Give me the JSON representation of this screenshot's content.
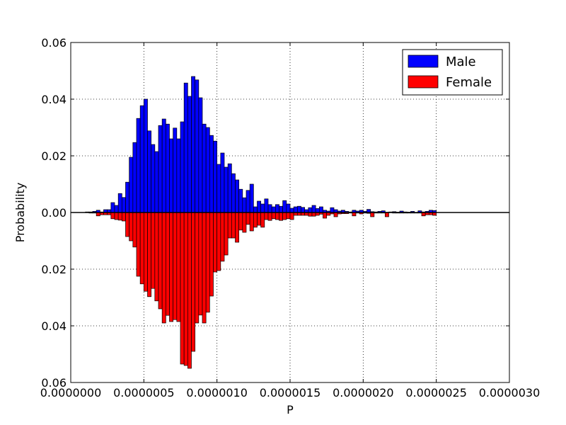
{
  "chart_data": {
    "type": "bar",
    "xlabel": "P",
    "ylabel": "Probability",
    "xlim": [
      0,
      3e-06
    ],
    "ylim": [
      -0.06,
      0.06
    ],
    "x_ticks": [
      "0.0000000",
      "0.0000005",
      "0.0000010",
      "0.0000015",
      "0.0000020",
      "0.0000025",
      "0.0000030"
    ],
    "y_ticks": [
      "0.06",
      "0.04",
      "0.02",
      "0.00",
      "0.02",
      "0.04",
      "0.06"
    ],
    "grid": true,
    "legend_position": "top-right",
    "bin_start": 1e-07,
    "bin_width": 2.5e-08,
    "series": [
      {
        "name": "Male",
        "color": "#0000ff",
        "values": [
          0.0002,
          0.0002,
          0.0004,
          0.0008,
          0.0002,
          0.001,
          0.001,
          0.0035,
          0.0025,
          0.0067,
          0.0053,
          0.0107,
          0.0195,
          0.0247,
          0.0332,
          0.0377,
          0.04,
          0.0288,
          0.024,
          0.0215,
          0.0307,
          0.033,
          0.0312,
          0.026,
          0.0298,
          0.026,
          0.032,
          0.0457,
          0.041,
          0.048,
          0.0468,
          0.0405,
          0.0312,
          0.03,
          0.0272,
          0.0252,
          0.017,
          0.021,
          0.016,
          0.0172,
          0.0137,
          0.0115,
          0.0082,
          0.0052,
          0.0078,
          0.01,
          0.002,
          0.004,
          0.003,
          0.0048,
          0.0028,
          0.002,
          0.0028,
          0.0022,
          0.0042,
          0.003,
          0.0015,
          0.002,
          0.0022,
          0.0018,
          0.001,
          0.0017,
          0.0025,
          0.0014,
          0.002,
          0.0008,
          0.0005,
          0.0017,
          0.001,
          0.0005,
          0.0008,
          0.0004,
          0.0002,
          0.0008,
          0.0005,
          0.0008,
          0.0004,
          0.0011,
          0.0003,
          0.0002,
          0.0004,
          0.0006,
          0.0001,
          0.0002,
          0.0003,
          0.0001,
          0.0005,
          0.0002,
          0.0001,
          0.0004,
          0.0,
          0.0006,
          0.0002,
          0.0004,
          0.0008,
          0.0007
        ]
      },
      {
        "name": "Female",
        "color": "#ff0000",
        "values": [
          0.0,
          0.0002,
          0.0002,
          0.0012,
          0.0008,
          0.0008,
          0.0008,
          0.0022,
          0.0025,
          0.0027,
          0.003,
          0.0085,
          0.01,
          0.0122,
          0.0225,
          0.0252,
          0.0278,
          0.0297,
          0.0268,
          0.0312,
          0.034,
          0.039,
          0.0363,
          0.0385,
          0.0378,
          0.0385,
          0.0535,
          0.054,
          0.055,
          0.049,
          0.039,
          0.0362,
          0.039,
          0.0352,
          0.0295,
          0.021,
          0.0205,
          0.0172,
          0.015,
          0.009,
          0.009,
          0.0105,
          0.0062,
          0.007,
          0.0042,
          0.0065,
          0.0052,
          0.0045,
          0.0052,
          0.0025,
          0.0028,
          0.0022,
          0.0025,
          0.0028,
          0.0025,
          0.0022,
          0.0025,
          0.001,
          0.001,
          0.001,
          0.001,
          0.0013,
          0.0013,
          0.001,
          0.0006,
          0.002,
          0.001,
          0.0005,
          0.0015,
          0.0005,
          0.0004,
          0.0004,
          0.0002,
          0.0012,
          0.0002,
          0.0005,
          0.0002,
          0.0003,
          0.0015,
          0.0002,
          0.0002,
          0.0002,
          0.0015,
          0.0,
          0.0002,
          0.0002,
          0.0002,
          0.0002,
          0.0002,
          0.0002,
          0.0002,
          0.0002,
          0.0012,
          0.0008,
          0.0008,
          0.001
        ]
      }
    ]
  }
}
